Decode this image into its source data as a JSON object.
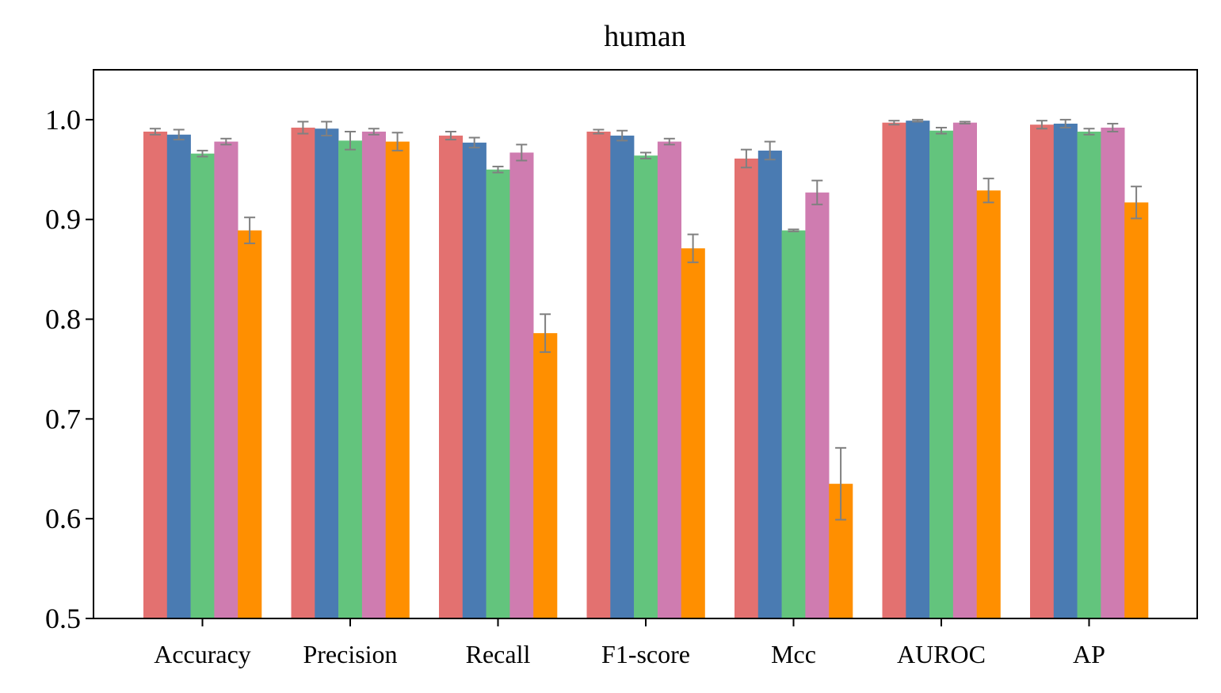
{
  "chart_data": {
    "type": "bar",
    "title": "human",
    "xlabel": "",
    "ylabel": "",
    "ylim": [
      0.5,
      1.05
    ],
    "yticks": [
      0.5,
      0.6,
      0.7,
      0.8,
      0.9,
      1.0
    ],
    "ytick_labels": [
      "0.5",
      "0.6",
      "0.7",
      "0.8",
      "0.9",
      "1.0"
    ],
    "grid": false,
    "legend": "none",
    "categories": [
      "Accuracy",
      "Precision",
      "Recall",
      "F1-score",
      "Mcc",
      "AUROC",
      "AP"
    ],
    "series": [
      {
        "color": "#e37170",
        "values": [
          0.988,
          0.992,
          0.984,
          0.988,
          0.961,
          0.997,
          0.995
        ],
        "errors": [
          0.003,
          0.006,
          0.004,
          0.002,
          0.009,
          0.002,
          0.004
        ]
      },
      {
        "color": "#4a7bb2",
        "values": [
          0.985,
          0.991,
          0.977,
          0.984,
          0.969,
          0.999,
          0.996
        ],
        "errors": [
          0.005,
          0.007,
          0.005,
          0.005,
          0.009,
          0.001,
          0.004
        ]
      },
      {
        "color": "#63c47d",
        "values": [
          0.966,
          0.979,
          0.95,
          0.964,
          0.889,
          0.989,
          0.988
        ],
        "errors": [
          0.003,
          0.009,
          0.003,
          0.003,
          0.001,
          0.003,
          0.003
        ]
      },
      {
        "color": "#cf7cb0",
        "values": [
          0.978,
          0.988,
          0.967,
          0.978,
          0.927,
          0.997,
          0.992
        ],
        "errors": [
          0.003,
          0.003,
          0.008,
          0.003,
          0.012,
          0.001,
          0.004
        ]
      },
      {
        "color": "#ff8f00",
        "values": [
          0.889,
          0.978,
          0.786,
          0.871,
          0.635,
          0.929,
          0.917
        ],
        "errors": [
          0.013,
          0.009,
          0.019,
          0.014,
          0.036,
          0.012,
          0.016
        ]
      }
    ]
  }
}
